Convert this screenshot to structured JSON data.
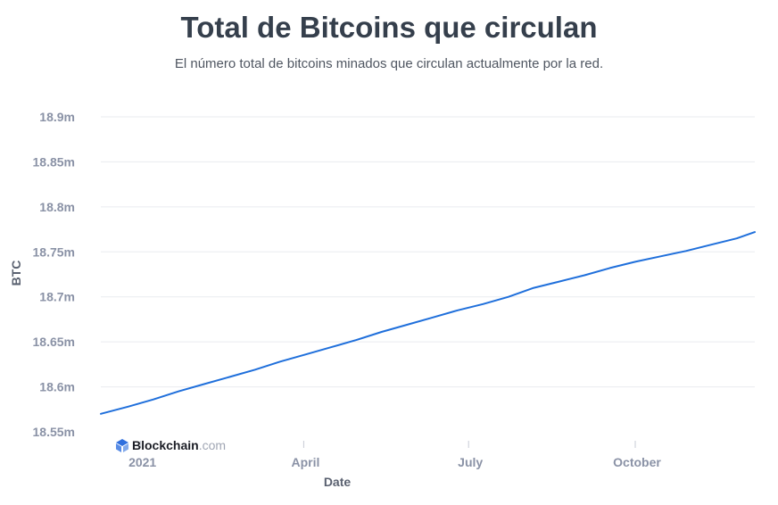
{
  "page": {
    "title": "Total de Bitcoins que circulan",
    "subtitle": "El número total de bitcoins minados que circulan actualmente por la red."
  },
  "logo": {
    "brand": "Blockchain",
    "suffix": ".com",
    "brand_color": "#1c1e26",
    "suffix_color": "#a0a6b4",
    "icon_color": "#2f6fde"
  },
  "chart_data": {
    "type": "line",
    "title": "Total de Bitcoins que circulan",
    "subtitle": "El número total de bitcoins minados que circulan actualmente por la red.",
    "xlabel": "Date",
    "ylabel": "BTC",
    "x_ticks": [
      {
        "date": "2021-01-01",
        "label": "2021"
      },
      {
        "date": "2021-04-01",
        "label": "April"
      },
      {
        "date": "2021-07-01",
        "label": "July"
      },
      {
        "date": "2021-10-01",
        "label": "October"
      }
    ],
    "y_ticks": [
      {
        "value": 18.55,
        "label": "18.55m"
      },
      {
        "value": 18.6,
        "label": "18.6m"
      },
      {
        "value": 18.65,
        "label": "18.65m"
      },
      {
        "value": 18.7,
        "label": "18.7m"
      },
      {
        "value": 18.75,
        "label": "18.75m"
      },
      {
        "value": 18.8,
        "label": "18.8m"
      },
      {
        "value": 18.85,
        "label": "18.85m"
      },
      {
        "value": 18.9,
        "label": "18.9m"
      }
    ],
    "xlim": [
      "2020-12-10",
      "2021-12-06"
    ],
    "ylim": [
      18.55,
      18.9
    ],
    "grid": true,
    "line_color": "#1f6fdb",
    "series": [
      {
        "points": [
          {
            "x": "2020-12-10",
            "y": 18.57
          },
          {
            "x": "2020-12-25",
            "y": 18.578
          },
          {
            "x": "2021-01-08",
            "y": 18.586
          },
          {
            "x": "2021-01-22",
            "y": 18.595
          },
          {
            "x": "2021-02-05",
            "y": 18.603
          },
          {
            "x": "2021-02-19",
            "y": 18.611
          },
          {
            "x": "2021-03-05",
            "y": 18.619
          },
          {
            "x": "2021-03-19",
            "y": 18.628
          },
          {
            "x": "2021-04-02",
            "y": 18.636
          },
          {
            "x": "2021-04-16",
            "y": 18.644
          },
          {
            "x": "2021-04-30",
            "y": 18.652
          },
          {
            "x": "2021-05-14",
            "y": 18.661
          },
          {
            "x": "2021-05-28",
            "y": 18.669
          },
          {
            "x": "2021-06-11",
            "y": 18.677
          },
          {
            "x": "2021-06-25",
            "y": 18.685
          },
          {
            "x": "2021-07-09",
            "y": 18.692
          },
          {
            "x": "2021-07-23",
            "y": 18.7
          },
          {
            "x": "2021-08-06",
            "y": 18.71
          },
          {
            "x": "2021-08-20",
            "y": 18.717
          },
          {
            "x": "2021-09-03",
            "y": 18.724
          },
          {
            "x": "2021-09-17",
            "y": 18.732
          },
          {
            "x": "2021-10-01",
            "y": 18.739
          },
          {
            "x": "2021-10-15",
            "y": 18.745
          },
          {
            "x": "2021-10-29",
            "y": 18.751
          },
          {
            "x": "2021-11-12",
            "y": 18.758
          },
          {
            "x": "2021-11-26",
            "y": 18.765
          },
          {
            "x": "2021-12-06",
            "y": 18.772
          }
        ]
      }
    ]
  }
}
